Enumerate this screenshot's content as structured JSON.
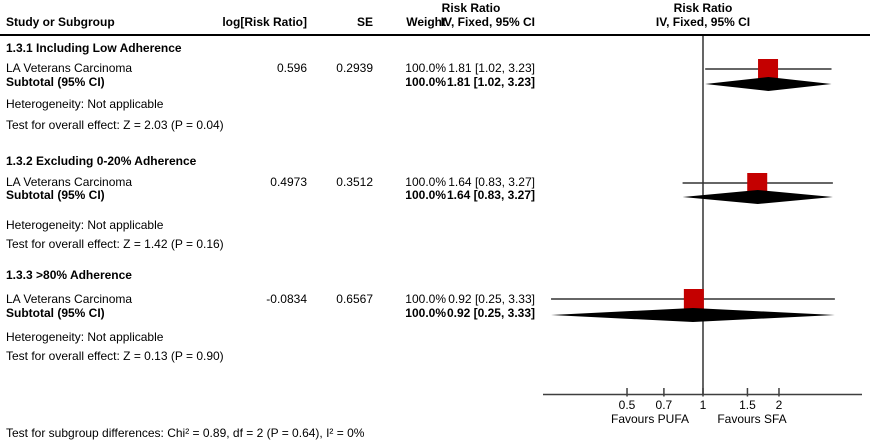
{
  "header": {
    "study_col": "Study or Subgroup",
    "log_rr_col": "log[Risk Ratio]",
    "se_col": "SE",
    "weight_col": "Weight",
    "effect_col_line1": "Risk Ratio",
    "effect_col_line2": "IV, Fixed, 95% CI",
    "plot_col_line1": "Risk Ratio",
    "plot_col_line2": "IV, Fixed, 95% CI"
  },
  "subgroups": [
    {
      "title": "1.3.1 Including Low Adherence",
      "study": {
        "name": "LA Veterans Carcinoma",
        "log_rr": "0.596",
        "se": "0.2939",
        "weight": "100.0%",
        "ci": "1.81 [1.02, 3.23]"
      },
      "subtotal": {
        "label": "Subtotal (95% CI)",
        "weight": "100.0%",
        "ci": "1.81 [1.02, 3.23]"
      },
      "heterogeneity": "Heterogeneity: Not applicable",
      "overall_effect": "Test for overall effect: Z = 2.03 (P = 0.04)"
    },
    {
      "title": "1.3.2 Excluding 0-20% Adherence",
      "study": {
        "name": "LA Veterans Carcinoma",
        "log_rr": "0.4973",
        "se": "0.3512",
        "weight": "100.0%",
        "ci": "1.64 [0.83, 3.27]"
      },
      "subtotal": {
        "label": "Subtotal (95% CI)",
        "weight": "100.0%",
        "ci": "1.64 [0.83, 3.27]"
      },
      "heterogeneity": "Heterogeneity: Not applicable",
      "overall_effect": "Test for overall effect: Z = 1.42 (P = 0.16)"
    },
    {
      "title": "1.3.3 >80% Adherence",
      "study": {
        "name": "LA Veterans Carcinoma",
        "log_rr": "-0.0834",
        "se": "0.6567",
        "weight": "100.0%",
        "ci": "0.92 [0.25, 3.33]"
      },
      "subtotal": {
        "label": "Subtotal (95% CI)",
        "weight": "100.0%",
        "ci": "0.92 [0.25, 3.33]"
      },
      "heterogeneity": "Heterogeneity: Not applicable",
      "overall_effect": "Test for overall effect: Z = 0.13 (P = 0.90)"
    }
  ],
  "axis": {
    "ticks": [
      "0.5",
      "0.7",
      "1",
      "1.5",
      "2"
    ],
    "favours_left": "Favours PUFA",
    "favours_right": "Favours SFA"
  },
  "footer": {
    "subgroup_differences": "Test for subgroup differences: Chi² = 0.89, df = 2 (P = 0.64), I² = 0%"
  },
  "colors": {
    "marker_red": "#c40000",
    "diamond_black": "#000000",
    "line_gray": "#3f3f3f"
  },
  "chart_data": {
    "type": "scatter",
    "subtype": "forest-plot",
    "title": "Risk Ratio, IV, Fixed, 95% CI",
    "x_scale": "log",
    "x_ticks": [
      0.5,
      0.7,
      1,
      1.5,
      2
    ],
    "x_range_drawn": [
      0.23,
      4.3
    ],
    "reference_line": 1,
    "xlabel_left": "Favours PUFA",
    "xlabel_right": "Favours SFA",
    "legend_position": "none",
    "grid": false,
    "series": [
      {
        "subgroup": "1.3.1 Including Low Adherence",
        "study": {
          "name": "LA Veterans Carcinoma",
          "log_rr": 0.596,
          "se": 0.2939,
          "estimate": 1.81,
          "ci_low": 1.02,
          "ci_high": 3.23,
          "weight_pct": 100.0
        },
        "subtotal": {
          "estimate": 1.81,
          "ci_low": 1.02,
          "ci_high": 3.23,
          "weight_pct": 100.0,
          "z": 2.03,
          "p": 0.04
        }
      },
      {
        "subgroup": "1.3.2 Excluding 0-20% Adherence",
        "study": {
          "name": "LA Veterans Carcinoma",
          "log_rr": 0.4973,
          "se": 0.3512,
          "estimate": 1.64,
          "ci_low": 0.83,
          "ci_high": 3.27,
          "weight_pct": 100.0
        },
        "subtotal": {
          "estimate": 1.64,
          "ci_low": 0.83,
          "ci_high": 3.27,
          "weight_pct": 100.0,
          "z": 1.42,
          "p": 0.16
        }
      },
      {
        "subgroup": "1.3.3 >80% Adherence",
        "study": {
          "name": "LA Veterans Carcinoma",
          "log_rr": -0.0834,
          "se": 0.6567,
          "estimate": 0.92,
          "ci_low": 0.25,
          "ci_high": 3.33,
          "weight_pct": 100.0
        },
        "subtotal": {
          "estimate": 0.92,
          "ci_low": 0.25,
          "ci_high": 3.33,
          "weight_pct": 100.0,
          "z": 0.13,
          "p": 0.9
        }
      }
    ]
  }
}
